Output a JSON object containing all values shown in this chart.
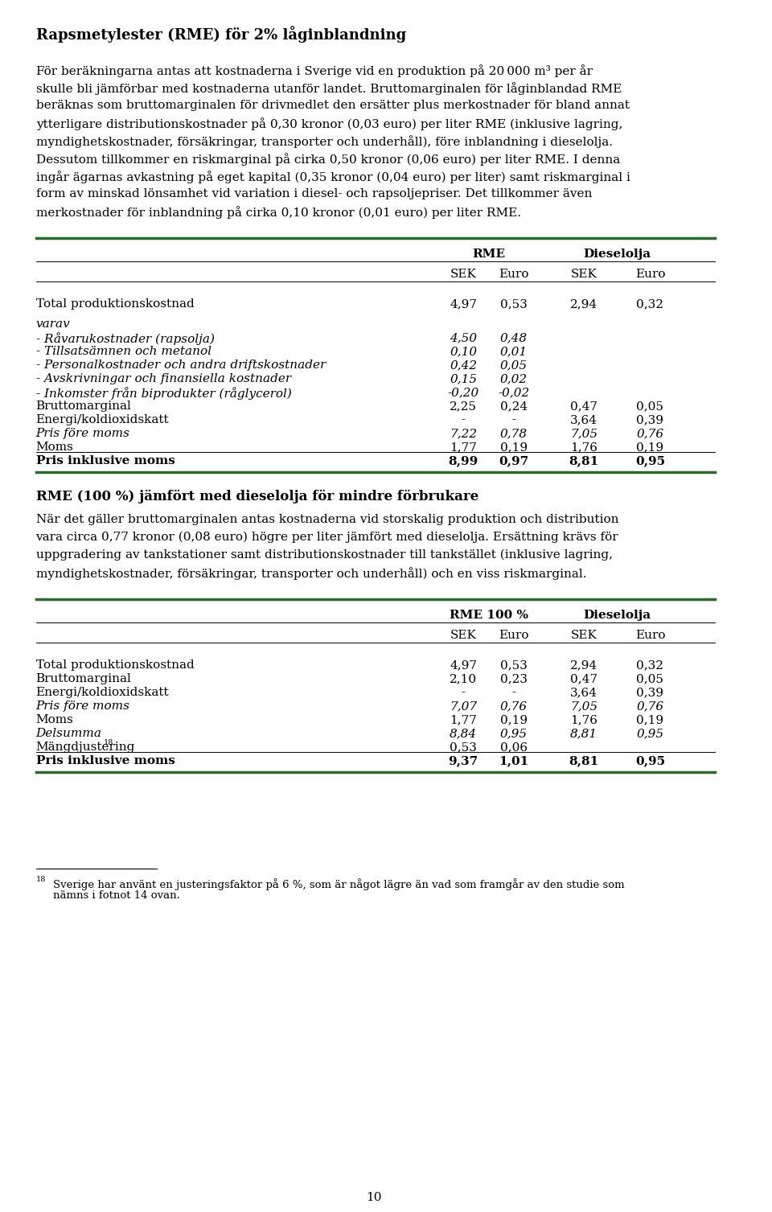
{
  "title": "Rapsmetylester (RME) för 2% låginblandning",
  "paragraph1_lines": [
    "För beräkningarna antas att kostnaderna i Sverige vid en produktion på 20 000 m³ per år",
    "skulle bli jämförbar med kostnaderna utanför landet. Bruttomarginalen för låginblandad RME",
    "beräknas som bruttomarginalen för drivmedlet den ersätter plus merkostnader för bland annat",
    "ytterligare distributionskostnader på 0,30 kronor (0,03 euro) per liter RME (inklusive lagring,",
    "myndighetskostnader, försäkringar, transporter och underhåll), före inblandning i dieselolja.",
    "Dessutom tillkommer en riskmarginal på cirka 0,50 kronor (0,06 euro) per liter RME. I denna",
    "ingår ägarnas avkastning på eget kapital (0,35 kronor (0,04 euro) per liter) samt riskmarginal i",
    "form av minskad lönsamhet vid variation i diesel- och rapsoljepriser. Det tillkommer även",
    "merkostnader för inblandning på cirka 0,10 kronor (0,01 euro) per liter RME."
  ],
  "table1_rows": [
    {
      "label": "Total produktionskostnad",
      "bold": false,
      "italic": false,
      "extra_space_after": true,
      "rme_sek": "4,97",
      "rme_euro": "0,53",
      "diesel_sek": "2,94",
      "diesel_euro": "0,32"
    },
    {
      "label": "varav",
      "bold": false,
      "italic": true,
      "extra_space_after": false,
      "rme_sek": "",
      "rme_euro": "",
      "diesel_sek": "",
      "diesel_euro": ""
    },
    {
      "label": "- Råvarukostnader (rapsolja)",
      "bold": false,
      "italic": true,
      "extra_space_after": false,
      "rme_sek": "4,50",
      "rme_euro": "0,48",
      "diesel_sek": "",
      "diesel_euro": ""
    },
    {
      "label": "- Tillsatsämnen och metanol",
      "bold": false,
      "italic": true,
      "extra_space_after": false,
      "rme_sek": "0,10",
      "rme_euro": "0,01",
      "diesel_sek": "",
      "diesel_euro": ""
    },
    {
      "label": "- Personalkostnader och andra driftskostnader",
      "bold": false,
      "italic": true,
      "extra_space_after": false,
      "rme_sek": "0,42",
      "rme_euro": "0,05",
      "diesel_sek": "",
      "diesel_euro": ""
    },
    {
      "label": "- Avskrivningar och finansiella kostnader",
      "bold": false,
      "italic": true,
      "extra_space_after": false,
      "rme_sek": "0,15",
      "rme_euro": "0,02",
      "diesel_sek": "",
      "diesel_euro": ""
    },
    {
      "label": "- Inkomster från biprodukter (råglycerol)",
      "bold": false,
      "italic": true,
      "extra_space_after": false,
      "rme_sek": "-0,20",
      "rme_euro": "-0,02",
      "diesel_sek": "",
      "diesel_euro": ""
    },
    {
      "label": "Bruttomarginal",
      "bold": false,
      "italic": false,
      "extra_space_after": false,
      "rme_sek": "2,25",
      "rme_euro": "0,24",
      "diesel_sek": "0,47",
      "diesel_euro": "0,05"
    },
    {
      "label": "Energi/koldioxidskatt",
      "bold": false,
      "italic": false,
      "extra_space_after": false,
      "rme_sek": "-",
      "rme_euro": "-",
      "diesel_sek": "3,64",
      "diesel_euro": "0,39"
    },
    {
      "label": "Pris före moms",
      "bold": false,
      "italic": true,
      "extra_space_after": false,
      "rme_sek": "7,22",
      "rme_euro": "0,78",
      "diesel_sek": "7,05",
      "diesel_euro": "0,76"
    },
    {
      "label": "Moms",
      "bold": false,
      "italic": false,
      "extra_space_after": false,
      "rme_sek": "1,77",
      "rme_euro": "0,19",
      "diesel_sek": "1,76",
      "diesel_euro": "0,19"
    },
    {
      "label": "Pris inklusive moms",
      "bold": true,
      "italic": false,
      "extra_space_after": false,
      "rme_sek": "8,99",
      "rme_euro": "0,97",
      "diesel_sek": "8,81",
      "diesel_euro": "0,95"
    }
  ],
  "section2_title": "RME (100 %) jämfört med dieselolja för mindre förbrukare",
  "paragraph2_lines": [
    "När det gäller bruttomarginalen antas kostnaderna vid storskalig produktion och distribution",
    "vara circa 0,77 kronor (0,08 euro) högre per liter jämfört med dieselolja. Ersättning krävs för",
    "uppgradering av tankstationer samt distributionskostnader till tankstället (inklusive lagring,",
    "myndighetskostnader, försäkringar, transporter och underhåll) och en viss riskmarginal."
  ],
  "table2_rows": [
    {
      "label": "Total produktionskostnad",
      "bold": false,
      "italic": false,
      "rme_sek": "4,97",
      "rme_euro": "0,53",
      "diesel_sek": "2,94",
      "diesel_euro": "0,32"
    },
    {
      "label": "Bruttomarginal",
      "bold": false,
      "italic": false,
      "rme_sek": "2,10",
      "rme_euro": "0,23",
      "diesel_sek": "0,47",
      "diesel_euro": "0,05"
    },
    {
      "label": "Energi/koldioxidskatt",
      "bold": false,
      "italic": false,
      "rme_sek": "-",
      "rme_euro": "-",
      "diesel_sek": "3,64",
      "diesel_euro": "0,39"
    },
    {
      "label": "Pris före moms",
      "bold": false,
      "italic": true,
      "rme_sek": "7,07",
      "rme_euro": "0,76",
      "diesel_sek": "7,05",
      "diesel_euro": "0,76"
    },
    {
      "label": "Moms",
      "bold": false,
      "italic": false,
      "rme_sek": "1,77",
      "rme_euro": "0,19",
      "diesel_sek": "1,76",
      "diesel_euro": "0,19"
    },
    {
      "label": "Delsumma",
      "bold": false,
      "italic": true,
      "rme_sek": "8,84",
      "rme_euro": "0,95",
      "diesel_sek": "8,81",
      "diesel_euro": "0,95"
    },
    {
      "label": "Mängdjustering",
      "bold": false,
      "italic": false,
      "superscript": "18",
      "rme_sek": "0,53",
      "rme_euro": "0,06",
      "diesel_sek": "",
      "diesel_euro": ""
    },
    {
      "label": "Pris inklusive moms",
      "bold": true,
      "italic": false,
      "rme_sek": "9,37",
      "rme_euro": "1,01",
      "diesel_sek": "8,81",
      "diesel_euro": "0,95"
    }
  ],
  "footnote_line_text": "18",
  "footnote_body": "Sverige har använt en justeringsfaktor på 6 %, som är något lägre än vad som framgår av den studie som",
  "footnote_body2": "nämns i fotnot 14 ovan.",
  "page_number": "10",
  "green_color": "#2d6a2d",
  "bg_color": "#ffffff",
  "text_color": "#000000"
}
